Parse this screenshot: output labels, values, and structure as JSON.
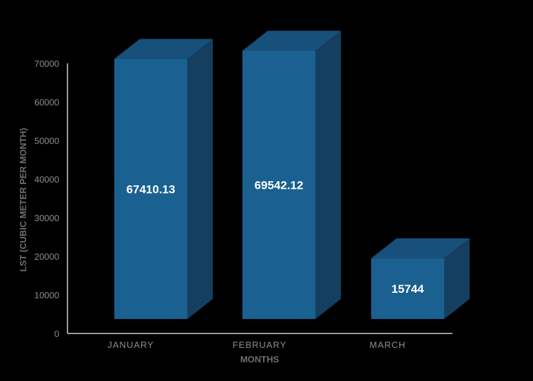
{
  "chart_data": {
    "type": "bar",
    "style": "3d-column",
    "categories": [
      "JANUARY",
      "FEBRUARY",
      "MARCH"
    ],
    "values": [
      67410.13,
      69542.12,
      15744
    ],
    "data_labels": [
      "67410.13",
      "69542.12",
      "15744"
    ],
    "title": "",
    "xlabel": "MONTHS",
    "ylabel": "LST (CUBIC METER PER MONTH)",
    "ylim": [
      0,
      70000
    ],
    "yticks": [
      0,
      10000,
      20000,
      30000,
      40000,
      50000,
      60000,
      70000
    ],
    "grid": false,
    "legend": "none",
    "colors": {
      "background": "#000000",
      "bar_front": "#1a6090",
      "bar_side": "#143f60",
      "bar_top": "#17507a",
      "axis": "#cfcfcf",
      "tick_text": "#8c8c8c",
      "title_text": "#6e6e6e",
      "data_label_text": "#ffffff"
    }
  }
}
